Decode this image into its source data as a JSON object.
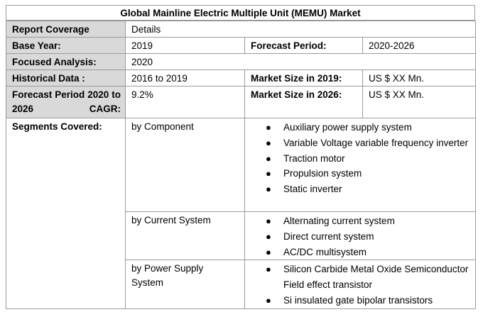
{
  "title": "Global Mainline Electric Multiple Unit (MEMU) Market",
  "rows": {
    "report_coverage": {
      "label": "Report Coverage",
      "value": "Details"
    },
    "base_year": {
      "label": "Base Year:",
      "value": "2019"
    },
    "forecast_period": {
      "label": "Forecast Period:",
      "value": "2020-2026"
    },
    "focused_analysis": {
      "label": "Focused Analysis:",
      "value": "2020"
    },
    "historical_data": {
      "label": "Historical Data :",
      "value": "2016 to 2019"
    },
    "market_size_2019": {
      "label": "Market Size in 2019:",
      "value": "US $ XX Mn."
    },
    "cagr": {
      "label": "Forecast Period 2020 to 2026 CAGR:",
      "value": "9.2%"
    },
    "market_size_2026": {
      "label": "Market Size in 2026:",
      "value": "US $ XX Mn."
    }
  },
  "segments": {
    "label": "Segments Covered:",
    "groups": [
      {
        "name": "by Component",
        "items": [
          "Auxiliary power supply system",
          "Variable Voltage variable frequency inverter",
          "Traction motor",
          "Propulsion system",
          "Static inverter"
        ]
      },
      {
        "name": "by Current System",
        "items": [
          "Alternating current system",
          "Direct current system",
          "AC/DC multisystem"
        ]
      },
      {
        "name": "by Power Supply System",
        "items": [
          "Silicon Carbide Metal Oxide Semiconductor Field effect transistor",
          "Si insulated gate bipolar transistors"
        ]
      }
    ]
  }
}
